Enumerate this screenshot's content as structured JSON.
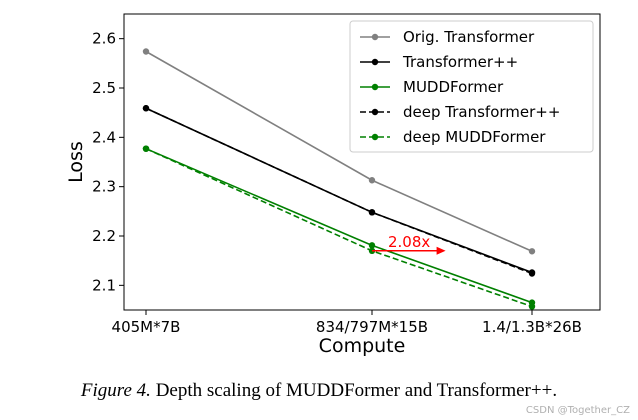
{
  "chart_data": {
    "type": "line",
    "title": "",
    "xlabel": "Compute",
    "ylabel": "Loss",
    "categories": [
      "405M*7B",
      "834/797M*15B",
      "1.4/1.3B*26B"
    ],
    "ylim": [
      2.05,
      2.65
    ],
    "yticks": [
      "2.1",
      "2.2",
      "2.3",
      "2.4",
      "2.5",
      "2.6"
    ],
    "grid": false,
    "legend_position": "top-right",
    "series": [
      {
        "name": "Orig. Transformer",
        "values": [
          2.574,
          2.313,
          2.169
        ],
        "color": "#808080",
        "dashed": false
      },
      {
        "name": "Transformer++",
        "values": [
          2.459,
          2.248,
          2.126
        ],
        "color": "#000000",
        "dashed": false
      },
      {
        "name": "MUDDFormer",
        "values": [
          2.377,
          2.181,
          2.065
        ],
        "color": "#008000",
        "dashed": false
      },
      {
        "name": "deep Transformer++",
        "values": [
          2.459,
          2.248,
          2.124
        ],
        "color": "#000000",
        "dashed": true
      },
      {
        "name": "deep MUDDFormer",
        "values": [
          2.377,
          2.17,
          2.057
        ],
        "color": "#008000",
        "dashed": true
      }
    ],
    "annotation": {
      "text": "2.08x",
      "color": "#ff0000",
      "y": 2.17,
      "x_from": 1,
      "x_to": 1.46
    }
  },
  "caption": {
    "label": "Figure 4.",
    "text": " Depth scaling of MUDDFormer and Transformer++."
  },
  "watermark": "CSDN @Together_CZ"
}
